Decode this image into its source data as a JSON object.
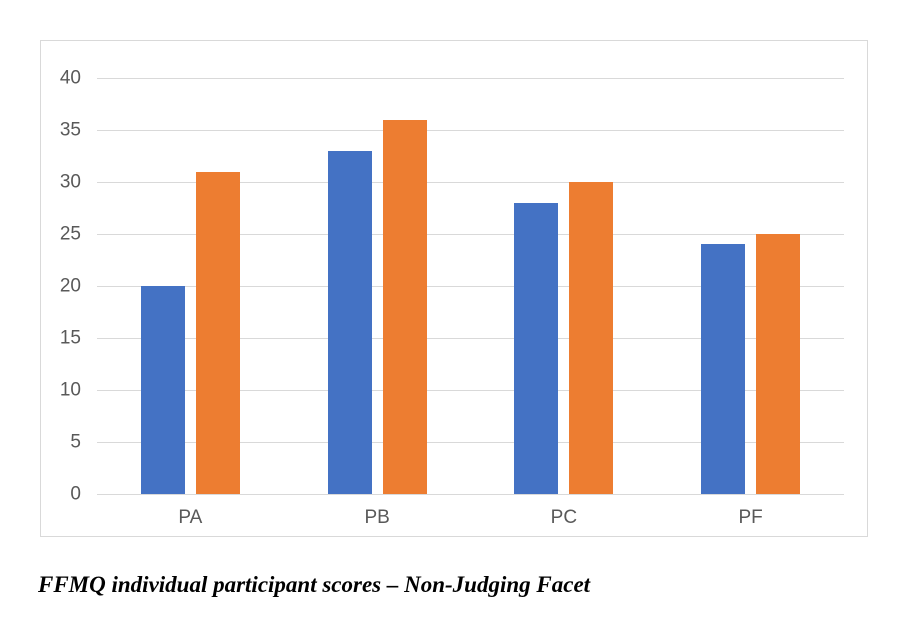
{
  "caption": "FFMQ individual participant scores – Non-Judging Facet",
  "chart_data": {
    "type": "bar",
    "title": "",
    "xlabel": "",
    "ylabel": "",
    "categories": [
      "PA",
      "PB",
      "PC",
      "PF"
    ],
    "series": [
      {
        "name": "series-1",
        "color": "#4472C4",
        "values": [
          20,
          33,
          28,
          24
        ]
      },
      {
        "name": "series-2",
        "color": "#ED7D31",
        "values": [
          31,
          36,
          30,
          25
        ]
      }
    ],
    "ylim": [
      0,
      40
    ],
    "yticks": [
      0,
      5,
      10,
      15,
      20,
      25,
      30,
      35,
      40
    ],
    "grid": true,
    "legend": false,
    "colors": {
      "gridline": "#D9D9D9",
      "frame_border": "#D9D9D9",
      "axis_label": "#595959"
    }
  }
}
